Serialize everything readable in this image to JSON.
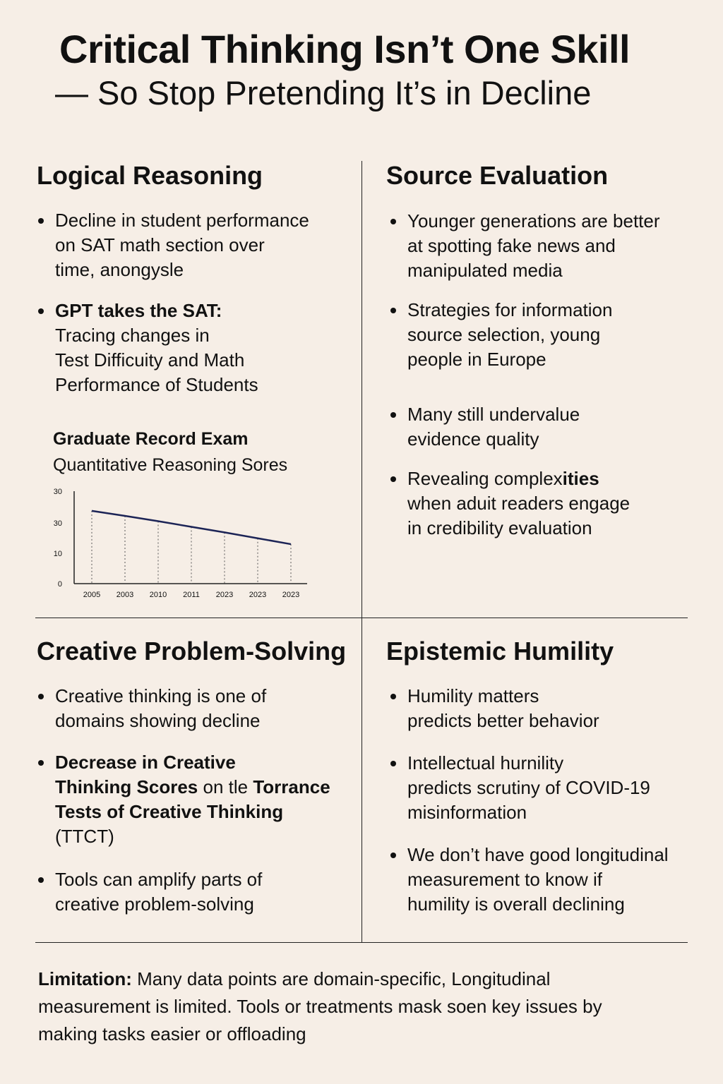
{
  "header": {
    "title": "Critical Thinking Isn’t One Skill",
    "subtitle": "— So Stop Pretending It’s in Decline"
  },
  "logical_reasoning": {
    "title": "Logical Reasoning",
    "bullet1": [
      "Decline in student performance",
      "on SAT math section over",
      "time, anongysle"
    ],
    "bullet2_bold": "GPT  takes the SAT:",
    "bullet2": [
      "Tracing changes in",
      "Test Difficuity and Math",
      "Performance of Students"
    ]
  },
  "source_evaluation": {
    "title": "Source Evaluation",
    "bullet1": [
      "Younger generations are better",
      "at spotting fake news and",
      "manipulated media"
    ],
    "bullet2": [
      "Strategies for information",
      "source selection, young",
      "people in Europe"
    ],
    "bullet3": [
      "Many still undervalue",
      "evidence quality"
    ],
    "bullet4_start": "Revealing complex",
    "bullet4_bold": "ities",
    "bullet4": [
      "when aduit readers engage",
      "in credibility evaluation"
    ]
  },
  "creative_problem_solving": {
    "title": "Creative Problem-Solving",
    "bullet1": [
      "Creative thinking is one of",
      "domains showing decline"
    ],
    "bullet2_line1": "Decrease in Creative",
    "bullet2_line2a": "Thinking Scores",
    "bullet2_line2b": " on tle ",
    "bullet2_line2c": "Torrance",
    "bullet2_line3": "Tests of Creative Thinking",
    "bullet2_line4": "(TTCT)",
    "bullet3": [
      "Tools can amplify parts of",
      "creative problem-solving"
    ]
  },
  "epistemic_humility": {
    "title": "Epistemic Humility",
    "bullet1": [
      "Humility matters",
      "predicts better behavior"
    ],
    "bullet2": [
      "Intellectual hurnility",
      "predicts scrutiny of COVID-19",
      "misinformation"
    ],
    "bullet3": [
      "We don’t have good longitudinal",
      "measurement to know if",
      "humility is overall declining"
    ]
  },
  "footer": {
    "label": "Limitation:",
    "line1": " Many data points are domain-specific, Longitudinal",
    "line2": "measurement is limited. Tools or treatments mask soen key issues by",
    "line3": "making tasks easier or offloading"
  },
  "chart_data": {
    "type": "line",
    "title": "Graduate Record Exam",
    "subtitle": "Quantitative Reasoning Sores",
    "categories": [
      "2005",
      "2003",
      "2010",
      "2011",
      "2023",
      "2023",
      "2023"
    ],
    "y_tick_labels": [
      "0",
      "10",
      "30",
      "30"
    ],
    "values": [
      26,
      24.2,
      22.3,
      20.3,
      18.3,
      16.2,
      14.1
    ],
    "ylim": [
      0,
      30
    ],
    "line_color": "#1c2456",
    "grid": "dotted vertical drop lines"
  }
}
